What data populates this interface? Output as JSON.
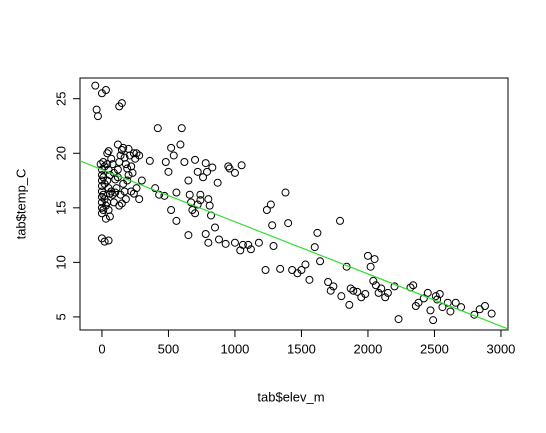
{
  "chart_data": {
    "type": "scatter",
    "xlabel": "tab$elev_m",
    "ylabel": "tab$temp_C",
    "x": [
      -50,
      -40,
      -30,
      0,
      30,
      130,
      150,
      120,
      -10,
      0,
      0,
      0,
      0,
      0,
      0,
      0,
      0,
      0,
      10,
      20,
      10,
      20,
      10,
      20,
      10,
      30,
      40,
      50,
      40,
      50,
      60,
      40,
      50,
      60,
      40,
      50,
      60,
      30,
      70,
      80,
      90,
      100,
      110,
      80,
      90,
      100,
      120,
      130,
      140,
      150,
      160,
      170,
      180,
      190,
      200,
      210,
      220,
      230,
      240,
      250,
      260,
      280,
      300,
      160,
      170,
      180,
      140,
      150,
      220,
      240,
      260,
      280,
      0,
      20,
      50,
      200,
      190,
      120,
      70,
      130,
      360,
      420,
      600,
      400,
      430,
      470,
      480,
      500,
      520,
      540,
      560,
      590,
      620,
      650,
      660,
      670,
      680,
      700,
      720,
      740,
      760,
      780,
      790,
      800,
      810,
      820,
      830,
      850,
      870,
      700,
      720,
      740,
      520,
      560,
      650,
      780,
      800,
      880,
      930,
      950,
      960,
      1000,
      1050,
      1000,
      1040,
      1060,
      1100,
      1120,
      1180,
      1230,
      1240,
      1270,
      1280,
      1290,
      1340,
      1380,
      1400,
      1430,
      1470,
      1500,
      1530,
      1560,
      1600,
      1620,
      1640,
      1700,
      1720,
      1740,
      1790,
      1800,
      1840,
      1860,
      1870,
      1890,
      1920,
      1950,
      1980,
      2000,
      2020,
      2040,
      2050,
      2060,
      2080,
      2100,
      2130,
      2150,
      2200,
      2230,
      2320,
      2340,
      2360,
      2380,
      2420,
      2450,
      2470,
      2490,
      2510,
      2520,
      2540,
      2560,
      2600,
      2620,
      2660,
      2700,
      2800,
      2840,
      2880,
      2930
    ],
    "values": [
      26.2,
      24,
      23.4,
      25.5,
      25.8,
      24.3,
      24.6,
      20.8,
      19,
      18.5,
      18,
      17.5,
      17,
      16.5,
      16,
      15.5,
      15,
      14.5,
      19.2,
      18.8,
      17.8,
      17.2,
      16.2,
      15.8,
      14.8,
      15.2,
      20,
      20.2,
      19,
      18.5,
      18,
      17.5,
      16.8,
      16.3,
      15.5,
      14.8,
      14.2,
      14,
      19.5,
      19,
      18.2,
      17.6,
      16.8,
      16.2,
      15.5,
      16.4,
      18.5,
      19.2,
      19.8,
      20.3,
      20.5,
      19.6,
      19,
      18.6,
      20.4,
      19.8,
      18.8,
      18.2,
      20,
      19.5,
      20,
      19.8,
      17.5,
      17.2,
      16.5,
      15.8,
      16.2,
      15.4,
      16.5,
      16.3,
      16.8,
      15.8,
      12.2,
      11.9,
      12,
      18,
      17.5,
      17.8,
      16.5,
      15.2,
      19.3,
      22.3,
      22.3,
      16.8,
      16.2,
      16.1,
      19.2,
      18.3,
      20.5,
      19.8,
      16.4,
      20.8,
      19.2,
      17.5,
      16.2,
      15.5,
      14.8,
      19.4,
      18.3,
      15.7,
      17.8,
      19.1,
      18.3,
      15.8,
      15.2,
      14.3,
      18.7,
      13.2,
      17.3,
      14.5,
      15.3,
      16.2,
      14.8,
      13.8,
      12.5,
      12.6,
      11.8,
      12.1,
      11.7,
      18.8,
      18.6,
      18.2,
      18.9,
      11.8,
      11.1,
      11.6,
      11.6,
      11.2,
      11.8,
      9.3,
      14.8,
      15.3,
      13.4,
      11.5,
      9.4,
      16.4,
      13.6,
      9.3,
      9.0,
      9.3,
      9.8,
      8.4,
      11.4,
      12.7,
      10.1,
      8.2,
      7.4,
      7.8,
      13.8,
      6.9,
      9.6,
      6.1,
      7.6,
      7.4,
      7.3,
      6.8,
      7.1,
      10.6,
      9.6,
      8.3,
      10.3,
      7.9,
      7.2,
      7.6,
      6.8,
      7.2,
      7.8,
      4.8,
      7.7,
      7.9,
      6.0,
      6.3,
      6.7,
      7.2,
      5.6,
      4.7,
      6.9,
      6.6,
      7.1,
      5.9,
      6.3,
      5.5,
      6.3,
      5.9,
      5.2,
      5.7,
      6.0,
      5.3
    ],
    "color": "#000000",
    "fit": {
      "x": [
        -165,
        3053
      ],
      "values": [
        19.3,
        3.9
      ],
      "color": "#33dd33"
    },
    "xlim": [
      -165,
      3053
    ],
    "ylim": [
      3.8,
      26.9
    ],
    "xticks": [
      0,
      500,
      1000,
      1500,
      2000,
      2500,
      3000
    ],
    "yticks": [
      5,
      10,
      15,
      20,
      25
    ]
  }
}
